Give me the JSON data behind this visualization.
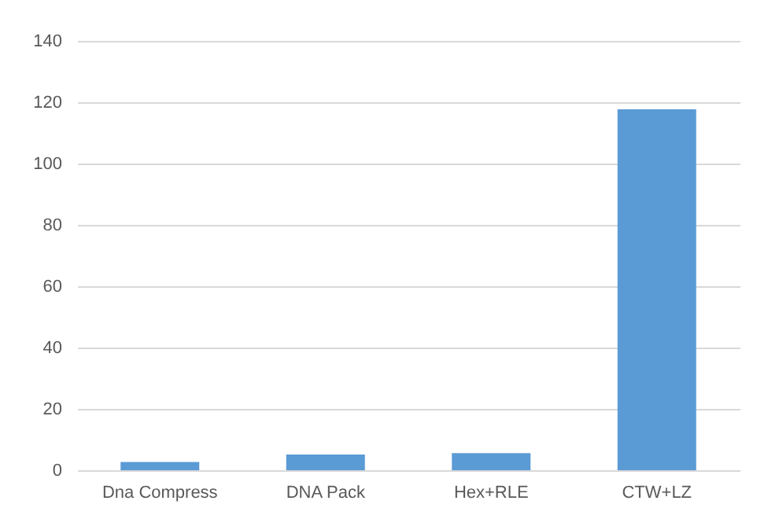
{
  "chart_data": {
    "type": "bar",
    "categories": [
      "Dna Compress",
      "DNA Pack",
      "Hex+RLE",
      "CTW+LZ"
    ],
    "values": [
      2.7,
      5.1,
      5.6,
      117.7
    ],
    "color": "#5b9bd5",
    "ylim": [
      0,
      140
    ],
    "yticks": [
      0,
      20,
      40,
      60,
      80,
      100,
      120,
      140
    ],
    "grid": "y"
  }
}
